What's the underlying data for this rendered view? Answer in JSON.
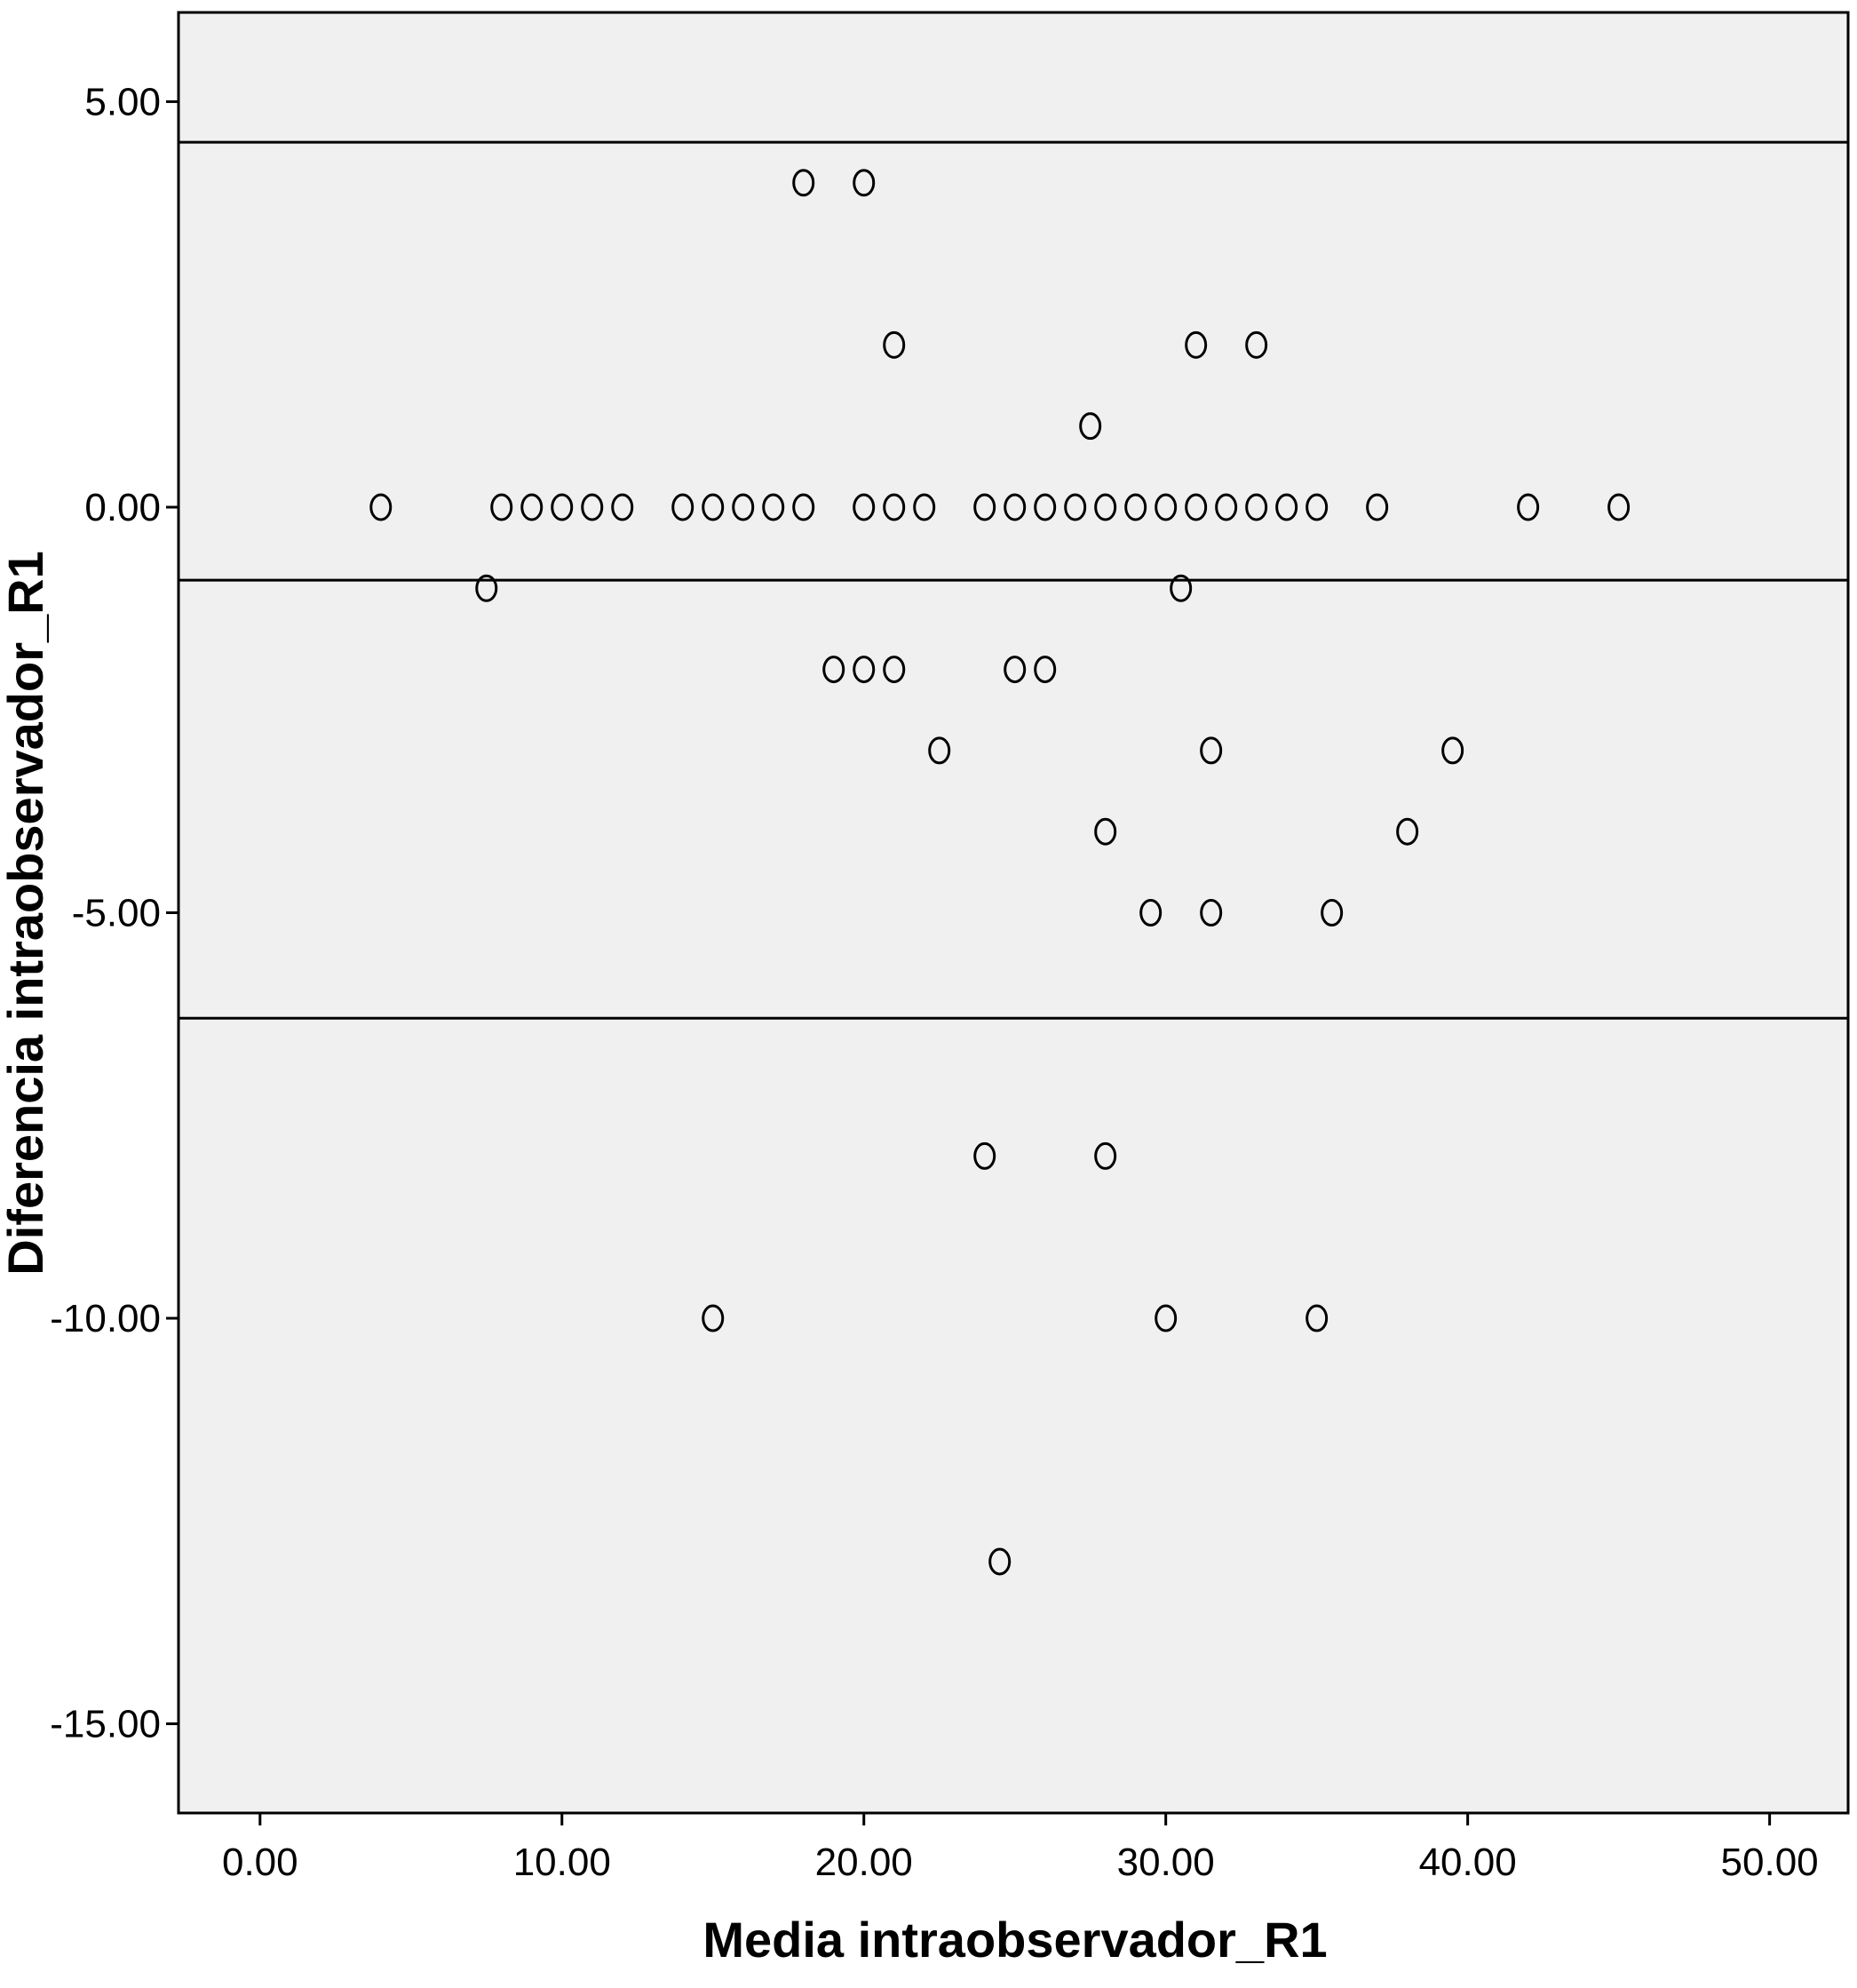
{
  "chart_data": {
    "type": "scatter",
    "title": "",
    "xlabel": "Media intraobservador_R1",
    "ylabel": "Diferencia intraobservador_R1",
    "xlim": [
      -2.7,
      52.6
    ],
    "ylim": [
      -16.1,
      6.1
    ],
    "x_ticks": [
      0,
      10,
      20,
      30,
      40,
      50
    ],
    "x_tick_labels": [
      "0.00",
      "10.00",
      "20.00",
      "30.00",
      "40.00",
      "50.00"
    ],
    "y_ticks": [
      5,
      0,
      -5,
      -10,
      -15
    ],
    "y_tick_labels": [
      "5.00",
      "0.00",
      "-5.00",
      "-10.00",
      "-15.00"
    ],
    "grid": false,
    "legend": "none",
    "marker": "open-circle",
    "colors": {
      "plot_background": "#f0f0f0",
      "axis": "#000000",
      "marker_stroke": "#000000",
      "reference_line": "#000000"
    },
    "reference_lines": [
      {
        "name": "upper-limit",
        "y": 4.5
      },
      {
        "name": "mean-difference",
        "y": -0.9
      },
      {
        "name": "lower-limit",
        "y": -6.3
      }
    ],
    "points": [
      {
        "x": 18,
        "y": 4
      },
      {
        "x": 20,
        "y": 4
      },
      {
        "x": 21,
        "y": 2
      },
      {
        "x": 31,
        "y": 2
      },
      {
        "x": 33,
        "y": 2
      },
      {
        "x": 27.5,
        "y": 1
      },
      {
        "x": 4,
        "y": 0
      },
      {
        "x": 8,
        "y": 0
      },
      {
        "x": 9,
        "y": 0
      },
      {
        "x": 10,
        "y": 0
      },
      {
        "x": 11,
        "y": 0
      },
      {
        "x": 12,
        "y": 0
      },
      {
        "x": 14,
        "y": 0
      },
      {
        "x": 15,
        "y": 0
      },
      {
        "x": 16,
        "y": 0
      },
      {
        "x": 17,
        "y": 0
      },
      {
        "x": 18,
        "y": 0
      },
      {
        "x": 20,
        "y": 0
      },
      {
        "x": 21,
        "y": 0
      },
      {
        "x": 22,
        "y": 0
      },
      {
        "x": 24,
        "y": 0
      },
      {
        "x": 25,
        "y": 0
      },
      {
        "x": 26,
        "y": 0
      },
      {
        "x": 27,
        "y": 0
      },
      {
        "x": 28,
        "y": 0
      },
      {
        "x": 29,
        "y": 0
      },
      {
        "x": 30,
        "y": 0
      },
      {
        "x": 31,
        "y": 0
      },
      {
        "x": 32,
        "y": 0
      },
      {
        "x": 33,
        "y": 0
      },
      {
        "x": 34,
        "y": 0
      },
      {
        "x": 35,
        "y": 0
      },
      {
        "x": 37,
        "y": 0
      },
      {
        "x": 42,
        "y": 0
      },
      {
        "x": 45,
        "y": 0
      },
      {
        "x": 7.5,
        "y": -1
      },
      {
        "x": 30.5,
        "y": -1
      },
      {
        "x": 19,
        "y": -2
      },
      {
        "x": 20,
        "y": -2
      },
      {
        "x": 21,
        "y": -2
      },
      {
        "x": 25,
        "y": -2
      },
      {
        "x": 26,
        "y": -2
      },
      {
        "x": 22.5,
        "y": -3
      },
      {
        "x": 31.5,
        "y": -3
      },
      {
        "x": 39.5,
        "y": -3
      },
      {
        "x": 28,
        "y": -4
      },
      {
        "x": 38,
        "y": -4
      },
      {
        "x": 29.5,
        "y": -5
      },
      {
        "x": 31.5,
        "y": -5
      },
      {
        "x": 35.5,
        "y": -5
      },
      {
        "x": 24,
        "y": -8
      },
      {
        "x": 28,
        "y": -8
      },
      {
        "x": 15,
        "y": -10
      },
      {
        "x": 30,
        "y": -10
      },
      {
        "x": 35,
        "y": -10
      },
      {
        "x": 24.5,
        "y": -13
      }
    ]
  }
}
